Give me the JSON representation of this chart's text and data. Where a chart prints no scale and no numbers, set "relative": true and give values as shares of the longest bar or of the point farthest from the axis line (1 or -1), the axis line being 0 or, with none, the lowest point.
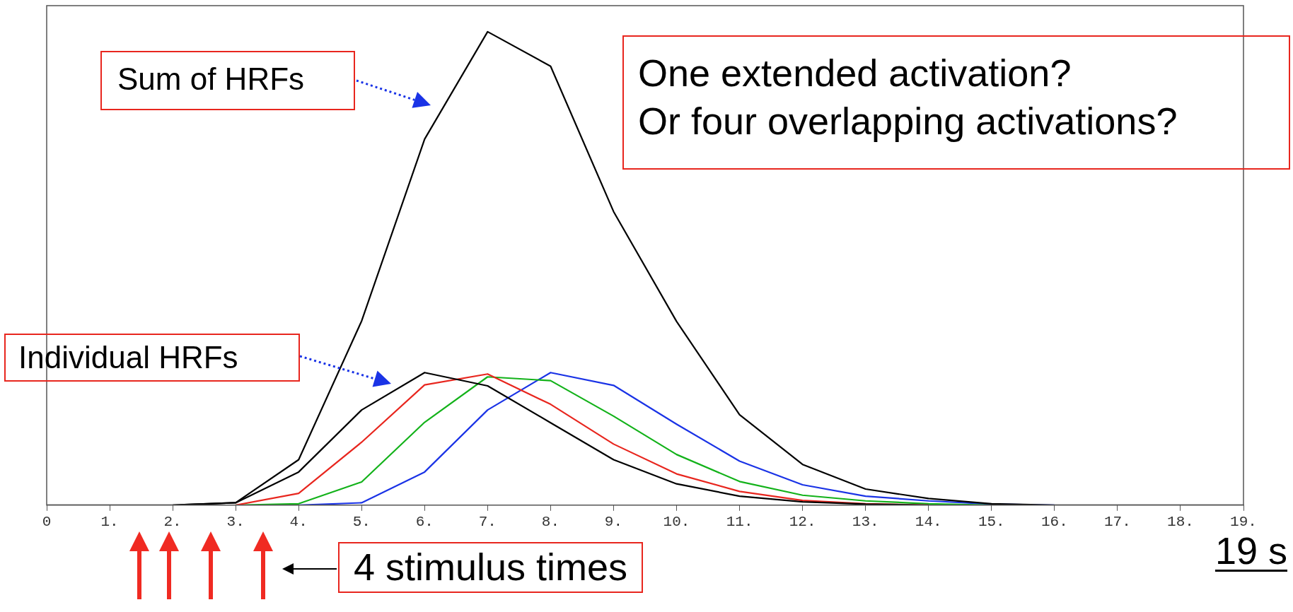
{
  "chart_data": {
    "type": "line",
    "relative": true,
    "x": [
      0,
      1,
      2,
      3,
      4,
      5,
      6,
      7,
      8,
      9,
      10,
      11,
      12,
      13,
      14,
      15,
      16,
      17,
      18,
      19
    ],
    "xlim": [
      0,
      19
    ],
    "xticks": [
      0,
      {
        "value": 1,
        "label": "1."
      },
      {
        "value": 2,
        "label": "2."
      },
      {
        "value": 3,
        "label": "3."
      },
      {
        "value": 4,
        "label": "4."
      },
      {
        "value": 5,
        "label": "5."
      },
      {
        "value": 6,
        "label": "6."
      },
      {
        "value": 7,
        "label": "7."
      },
      {
        "value": 8,
        "label": "8."
      },
      {
        "value": 9,
        "label": "9."
      },
      {
        "value": 10,
        "label": "10."
      },
      {
        "value": 11,
        "label": "11."
      },
      {
        "value": 12,
        "label": "12."
      },
      {
        "value": 13,
        "label": "13."
      },
      {
        "value": 14,
        "label": "14."
      },
      {
        "value": 15,
        "label": "15."
      },
      {
        "value": 16,
        "label": "16."
      },
      {
        "value": 17,
        "label": "17."
      },
      {
        "value": 18,
        "label": "18."
      },
      {
        "value": 19,
        "label": "19."
      }
    ],
    "tick_labels": "x",
    "grid": false,
    "legend": false,
    "marker": "none",
    "line_style": "solid",
    "series": [
      {
        "color": "#000000",
        "values": [
          0,
          0,
          0,
          0.005,
          0.096,
          0.389,
          0.773,
          1,
          0.927,
          0.62,
          0.388,
          0.191,
          0.086,
          0.034,
          0.014,
          0.003,
          0,
          0,
          0,
          0
        ]
      },
      {
        "color": "#000000",
        "values": [
          null,
          null,
          0,
          0.005,
          0.07,
          0.201,
          0.28,
          0.252,
          0.174,
          0.096,
          0.045,
          0.019,
          0.007,
          0.002,
          0,
          null,
          null,
          null,
          null,
          null
        ]
      },
      {
        "color": "#e8261e",
        "values": [
          null,
          null,
          null,
          0,
          0.025,
          0.133,
          0.254,
          0.277,
          0.213,
          0.129,
          0.066,
          0.029,
          0.01,
          0.003,
          0,
          null,
          null,
          null,
          null,
          null
        ]
      },
      {
        "color": "#13b21a",
        "values": [
          null,
          null,
          null,
          0,
          0.003,
          0.049,
          0.175,
          0.271,
          0.263,
          0.188,
          0.107,
          0.05,
          0.021,
          0.009,
          0.003,
          0,
          null,
          null,
          null,
          null
        ]
      },
      {
        "color": "#1a33e6",
        "values": [
          null,
          null,
          null,
          null,
          0,
          0.005,
          0.07,
          0.201,
          0.28,
          0.253,
          0.171,
          0.093,
          0.043,
          0.019,
          0.009,
          0.002,
          0,
          null,
          null,
          null
        ]
      }
    ],
    "annotations": [
      "Sum of HRFs",
      "Individual HRFs",
      "One extended activation?\nOr four overlapping activations?",
      "4 stimulus times",
      "19 s"
    ]
  }
}
